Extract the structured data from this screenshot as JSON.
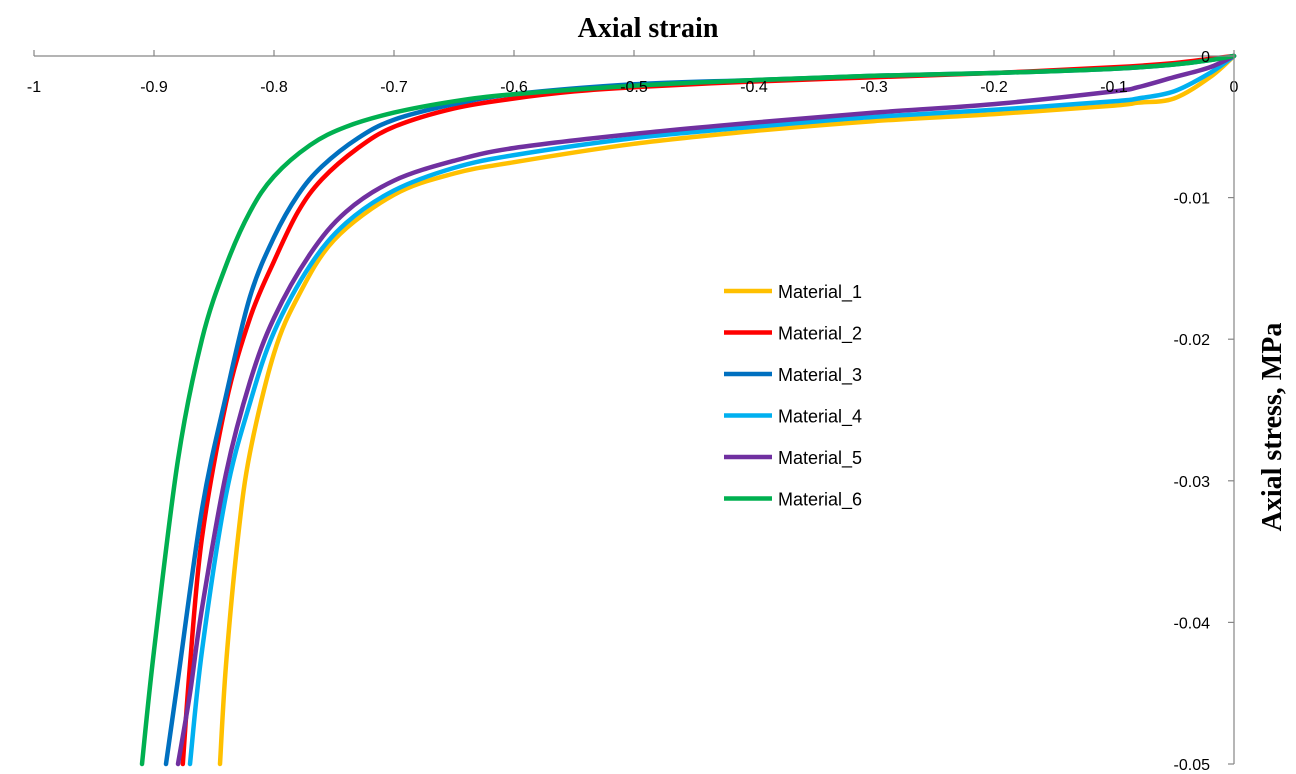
{
  "chart_data": {
    "type": "line",
    "title": "",
    "xlabel": "Axial strain",
    "ylabel": "Axial stress, MPa",
    "xlim": [
      -1,
      0
    ],
    "ylim": [
      -0.05,
      0
    ],
    "x_ticks": [
      "-1",
      "-0.9",
      "-0.8",
      "-0.7",
      "-0.6",
      "-0.5",
      "-0.4",
      "-0.3",
      "-0.2",
      "-0.1",
      "0"
    ],
    "y_ticks": [
      "0",
      "-0.01",
      "-0.02",
      "-0.03",
      "-0.04",
      "-0.05"
    ],
    "grid": false,
    "legend_position": "center",
    "series": [
      {
        "name": "Material_1",
        "color": "#FFC000",
        "x": [
          0,
          -0.02,
          -0.05,
          -0.08,
          -0.1,
          -0.2,
          -0.3,
          -0.4,
          -0.5,
          -0.6,
          -0.65,
          -0.7,
          -0.75,
          -0.78,
          -0.8,
          -0.82,
          -0.83,
          -0.84,
          -0.845
        ],
        "y": [
          0,
          -0.0015,
          -0.003,
          -0.0033,
          -0.0035,
          -0.0041,
          -0.0046,
          -0.0053,
          -0.0062,
          -0.0075,
          -0.0083,
          -0.0098,
          -0.013,
          -0.017,
          -0.021,
          -0.028,
          -0.034,
          -0.043,
          -0.05
        ]
      },
      {
        "name": "Material_2",
        "color": "#FF0000",
        "x": [
          0,
          -0.02,
          -0.05,
          -0.1,
          -0.2,
          -0.3,
          -0.4,
          -0.5,
          -0.55,
          -0.6,
          -0.65,
          -0.7,
          -0.73,
          -0.76,
          -0.78,
          -0.8,
          -0.82,
          -0.84,
          -0.86,
          -0.87,
          -0.876
        ],
        "y": [
          0,
          -0.0002,
          -0.0005,
          -0.0008,
          -0.0012,
          -0.0015,
          -0.0018,
          -0.0022,
          -0.0025,
          -0.003,
          -0.0037,
          -0.005,
          -0.0065,
          -0.0087,
          -0.011,
          -0.0145,
          -0.0185,
          -0.0245,
          -0.034,
          -0.043,
          -0.05
        ]
      },
      {
        "name": "Material_3",
        "color": "#0070C0",
        "x": [
          0,
          -0.02,
          -0.05,
          -0.1,
          -0.2,
          -0.3,
          -0.4,
          -0.5,
          -0.6,
          -0.65,
          -0.7,
          -0.73,
          -0.76,
          -0.78,
          -0.8,
          -0.82,
          -0.84,
          -0.86,
          -0.88,
          -0.89
        ],
        "y": [
          0,
          -0.0003,
          -0.0006,
          -0.0009,
          -0.0012,
          -0.0014,
          -0.0017,
          -0.002,
          -0.0027,
          -0.0034,
          -0.0045,
          -0.0058,
          -0.0078,
          -0.0098,
          -0.0128,
          -0.017,
          -0.024,
          -0.032,
          -0.044,
          -0.05
        ]
      },
      {
        "name": "Material_4",
        "color": "#00B0F0",
        "x": [
          0,
          -0.02,
          -0.05,
          -0.08,
          -0.1,
          -0.2,
          -0.3,
          -0.4,
          -0.5,
          -0.6,
          -0.65,
          -0.7,
          -0.74,
          -0.77,
          -0.8,
          -0.82,
          -0.84,
          -0.86,
          -0.87
        ],
        "y": [
          0,
          -0.0012,
          -0.0025,
          -0.003,
          -0.0032,
          -0.0038,
          -0.0043,
          -0.005,
          -0.0058,
          -0.007,
          -0.0079,
          -0.0095,
          -0.0118,
          -0.0148,
          -0.0195,
          -0.0245,
          -0.031,
          -0.042,
          -0.05
        ]
      },
      {
        "name": "Material_5",
        "color": "#7030A0",
        "x": [
          0,
          -0.02,
          -0.05,
          -0.08,
          -0.1,
          -0.2,
          -0.3,
          -0.4,
          -0.5,
          -0.6,
          -0.65,
          -0.7,
          -0.74,
          -0.77,
          -0.8,
          -0.82,
          -0.84,
          -0.86,
          -0.87,
          -0.88
        ],
        "y": [
          0,
          -0.0008,
          -0.0015,
          -0.0022,
          -0.0025,
          -0.0034,
          -0.004,
          -0.0047,
          -0.0055,
          -0.0065,
          -0.0074,
          -0.0088,
          -0.011,
          -0.014,
          -0.0185,
          -0.023,
          -0.0295,
          -0.039,
          -0.045,
          -0.05
        ]
      },
      {
        "name": "Material_6",
        "color": "#00B050",
        "x": [
          0,
          -0.02,
          -0.05,
          -0.1,
          -0.2,
          -0.3,
          -0.4,
          -0.5,
          -0.6,
          -0.65,
          -0.7,
          -0.74,
          -0.77,
          -0.8,
          -0.82,
          -0.84,
          -0.86,
          -0.88,
          -0.9,
          -0.91
        ],
        "y": [
          0,
          -0.0003,
          -0.0006,
          -0.0009,
          -0.0012,
          -0.0014,
          -0.0017,
          -0.0021,
          -0.0027,
          -0.0032,
          -0.004,
          -0.005,
          -0.0063,
          -0.0085,
          -0.011,
          -0.0148,
          -0.02,
          -0.0285,
          -0.042,
          -0.05
        ]
      }
    ]
  }
}
